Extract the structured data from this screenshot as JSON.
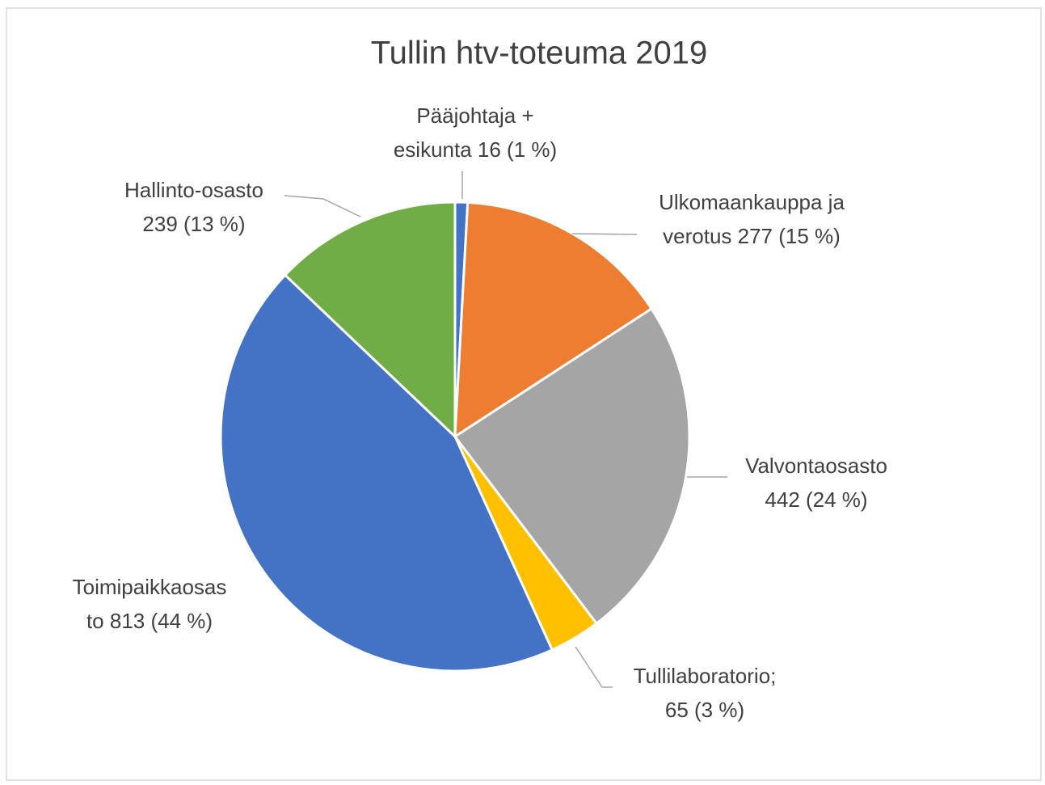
{
  "chart_data": {
    "type": "pie",
    "title": "Tullin htv-toteuma 2019",
    "values": [
      16,
      277,
      442,
      65,
      813,
      239
    ],
    "value_labels": [
      [
        "Pääjohtaja +",
        "esikunta 16 (1 %)"
      ],
      [
        "Ulkomaankauppa ja",
        "verotus 277 (15 %)"
      ],
      [
        "Valvontaosasto",
        "442 (24 %)"
      ],
      [
        "Tullilaboratorio;",
        "65 (3 %)"
      ],
      [
        "Toimipaikkaosas",
        "to 813 (44 %)"
      ],
      [
        "Hallinto-osasto",
        "239 (13 %)"
      ]
    ],
    "colors": [
      "#4472c4",
      "#ed7d31",
      "#a5a5a5",
      "#ffc000",
      "#4472c4",
      "#70ad47"
    ]
  }
}
